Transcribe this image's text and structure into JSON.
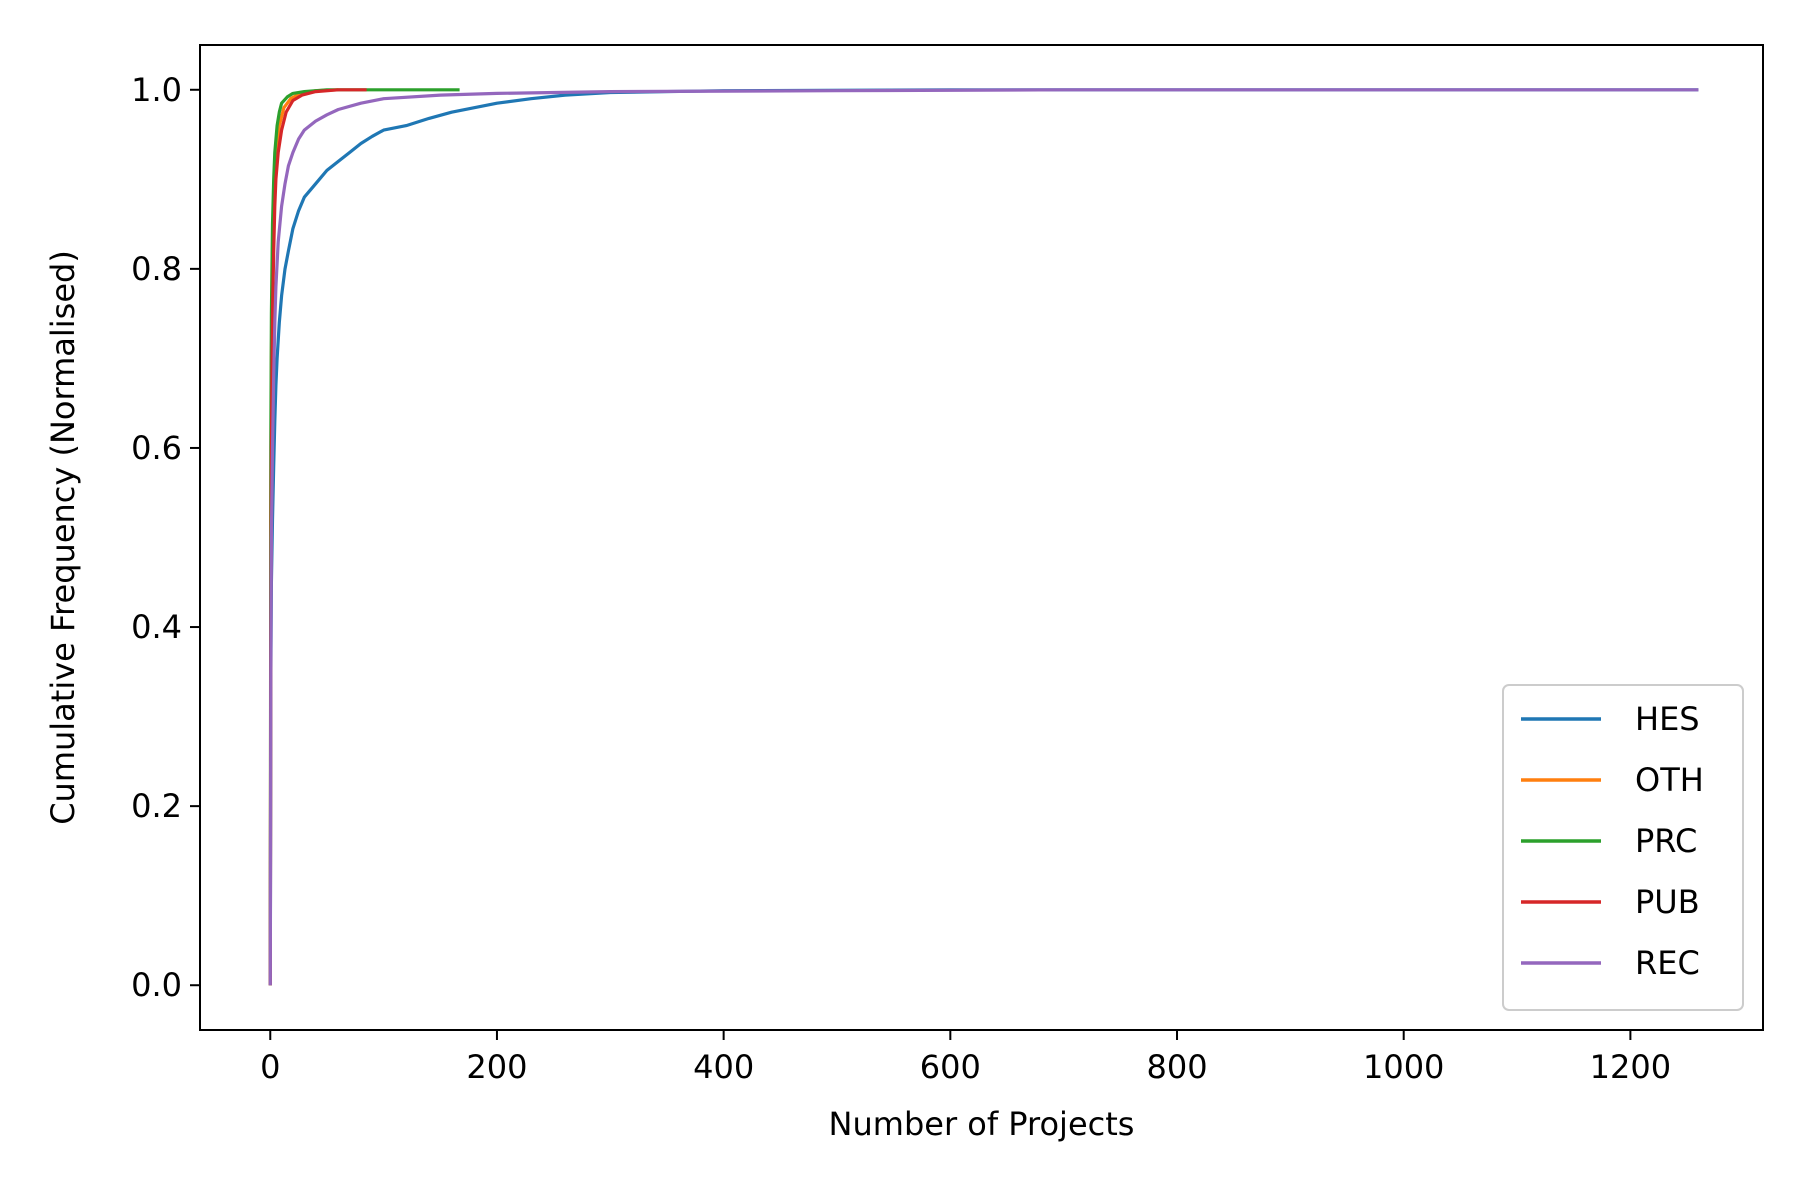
{
  "chart_data": {
    "type": "line",
    "title": "",
    "xlabel": "Number of Projects",
    "ylabel": "Cumulative Frequency (Normalised)",
    "xlim": [
      -62,
      1317
    ],
    "ylim": [
      -0.05,
      1.05
    ],
    "xticks": [
      0,
      200,
      400,
      600,
      800,
      1000,
      1200
    ],
    "yticks": [
      0.0,
      0.2,
      0.4,
      0.6,
      0.8,
      1.0
    ],
    "xtick_labels": [
      "0",
      "200",
      "400",
      "600",
      "800",
      "1000",
      "1200"
    ],
    "ytick_labels": [
      "0.0",
      "0.2",
      "0.4",
      "0.6",
      "0.8",
      "1.0"
    ],
    "grid": false,
    "legend_position": "lower-right",
    "series": [
      {
        "name": "HES",
        "color": "#1f77b4",
        "points": [
          [
            0,
            0.0
          ],
          [
            0.5,
            0.33
          ],
          [
            1,
            0.45
          ],
          [
            2,
            0.52
          ],
          [
            3,
            0.58
          ],
          [
            4,
            0.63
          ],
          [
            5,
            0.67
          ],
          [
            6,
            0.7
          ],
          [
            8,
            0.74
          ],
          [
            10,
            0.77
          ],
          [
            13,
            0.8
          ],
          [
            16,
            0.82
          ],
          [
            20,
            0.845
          ],
          [
            25,
            0.865
          ],
          [
            30,
            0.88
          ],
          [
            40,
            0.895
          ],
          [
            50,
            0.91
          ],
          [
            60,
            0.92
          ],
          [
            70,
            0.93
          ],
          [
            80,
            0.94
          ],
          [
            90,
            0.948
          ],
          [
            100,
            0.955
          ],
          [
            120,
            0.96
          ],
          [
            140,
            0.968
          ],
          [
            160,
            0.975
          ],
          [
            180,
            0.98
          ],
          [
            200,
            0.985
          ],
          [
            230,
            0.99
          ],
          [
            260,
            0.994
          ],
          [
            300,
            0.997
          ],
          [
            400,
            0.999
          ],
          [
            600,
            1.0
          ],
          [
            1260,
            1.0
          ]
        ]
      },
      {
        "name": "OTH",
        "color": "#ff7f0e",
        "points": [
          [
            0,
            0.0
          ],
          [
            0.5,
            0.5
          ],
          [
            1,
            0.7
          ],
          [
            2,
            0.82
          ],
          [
            3,
            0.88
          ],
          [
            5,
            0.93
          ],
          [
            8,
            0.96
          ],
          [
            12,
            0.98
          ],
          [
            18,
            0.99
          ],
          [
            25,
            0.995
          ],
          [
            40,
            0.999
          ],
          [
            60,
            1.0
          ]
        ]
      },
      {
        "name": "PRC",
        "color": "#2ca02c",
        "points": [
          [
            0,
            0.0
          ],
          [
            0.5,
            0.6
          ],
          [
            1,
            0.75
          ],
          [
            2,
            0.85
          ],
          [
            3,
            0.9
          ],
          [
            4,
            0.93
          ],
          [
            6,
            0.96
          ],
          [
            8,
            0.975
          ],
          [
            10,
            0.985
          ],
          [
            15,
            0.992
          ],
          [
            20,
            0.996
          ],
          [
            30,
            0.998
          ],
          [
            50,
            1.0
          ],
          [
            167,
            1.0
          ]
        ]
      },
      {
        "name": "PUB",
        "color": "#d62728",
        "points": [
          [
            0,
            0.0
          ],
          [
            0.5,
            0.4
          ],
          [
            1,
            0.6
          ],
          [
            2,
            0.75
          ],
          [
            3,
            0.82
          ],
          [
            4,
            0.87
          ],
          [
            5,
            0.9
          ],
          [
            7,
            0.93
          ],
          [
            10,
            0.955
          ],
          [
            14,
            0.975
          ],
          [
            20,
            0.988
          ],
          [
            28,
            0.994
          ],
          [
            40,
            0.998
          ],
          [
            60,
            1.0
          ],
          [
            85,
            1.0
          ]
        ]
      },
      {
        "name": "REC",
        "color": "#9467bd",
        "points": [
          [
            0,
            0.0
          ],
          [
            0.5,
            0.35
          ],
          [
            1,
            0.5
          ],
          [
            2,
            0.6
          ],
          [
            3,
            0.68
          ],
          [
            4,
            0.74
          ],
          [
            5,
            0.78
          ],
          [
            7,
            0.83
          ],
          [
            10,
            0.87
          ],
          [
            13,
            0.895
          ],
          [
            16,
            0.915
          ],
          [
            20,
            0.93
          ],
          [
            25,
            0.945
          ],
          [
            30,
            0.955
          ],
          [
            40,
            0.965
          ],
          [
            50,
            0.972
          ],
          [
            60,
            0.978
          ],
          [
            80,
            0.985
          ],
          [
            100,
            0.99
          ],
          [
            150,
            0.994
          ],
          [
            200,
            0.996
          ],
          [
            300,
            0.998
          ],
          [
            500,
            0.999
          ],
          [
            700,
            1.0
          ],
          [
            1260,
            1.0
          ]
        ]
      }
    ]
  }
}
